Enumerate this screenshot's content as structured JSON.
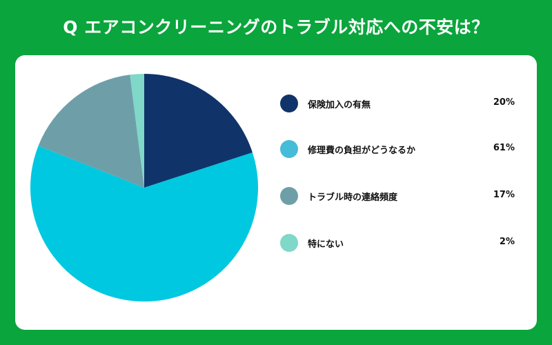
{
  "title": "Q エアコンクリーニングのトラブル対応への不安は？",
  "chart_data": {
    "type": "pie",
    "categories": [
      "保険加入の有無",
      "修理費の負担がどうなるか",
      "トラブル時の連絡頻度",
      "特にない"
    ],
    "values": [
      20,
      61,
      17,
      2
    ],
    "value_labels": [
      "20%",
      "61%",
      "17%",
      "2%"
    ],
    "colors": [
      "#10346a",
      "#00c8e0",
      "#6e9fa8",
      "#7fd8c8"
    ],
    "legend_colors": [
      "#10346a",
      "#45bcd8",
      "#6e9fa8",
      "#7fd8c8"
    ],
    "legend_position": "right"
  }
}
